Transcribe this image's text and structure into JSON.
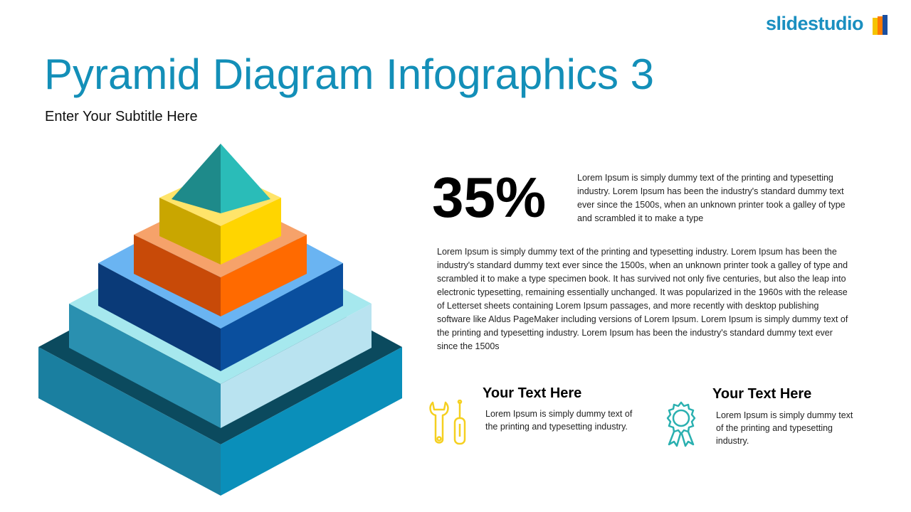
{
  "logo": {
    "text": "slidestudio",
    "colors": [
      "#f5c400",
      "#ff7a00",
      "#1a4fa0"
    ]
  },
  "title": "Pyramid Diagram Infographics 3",
  "subtitle": "Enter Your Subtitle Here",
  "stat": {
    "value": "35%",
    "text": "Lorem Ipsum is simply dummy text of the printing and typesetting industry. Lorem Ipsum has been the industry's standard dummy text ever since the 1500s, when an unknown printer took a galley of type and scrambled it to make a type"
  },
  "body": "Lorem Ipsum is simply dummy text of the printing and typesetting industry. Lorem Ipsum has been the industry's standard dummy text ever since the 1500s, when an unknown printer took a galley of type and scrambled it to make a type specimen book. It has survived not only five centuries, but also the leap into electronic typesetting, remaining essentially unchanged. It was popularized in the 1960s with the release of Letterset sheets containing Lorem Ipsum passages, and more recently with desktop publishing software like Aldus PageMaker including versions of Lorem Ipsum. Lorem Ipsum is simply dummy text of the printing and typesetting industry. Lorem Ipsum has been the industry's standard dummy text ever since the 1500s",
  "features": [
    {
      "icon": "wrench-screwdriver-icon",
      "color": "#f5d020",
      "heading": "Your Text Here",
      "text": "Lorem Ipsum is simply dummy text of the printing and typesetting industry."
    },
    {
      "icon": "award-ribbon-icon",
      "color": "#2ab0b0",
      "heading": "Your Text Here",
      "text": "Lorem Ipsum is simply dummy text of the printing and typesetting industry."
    }
  ],
  "pyramid_colors": {
    "level1": {
      "top": "#0b4a5e",
      "left": "#1a7fa0",
      "right": "#0a8fba"
    },
    "level2": {
      "top": "#a6e8ee",
      "left": "#2a90b0",
      "right": "#b9e3f0"
    },
    "level3": {
      "top": "#6ab4f2",
      "left": "#0a3a78",
      "right": "#0a4f9e"
    },
    "level4": {
      "top": "#f6a26a",
      "left": "#c84a08",
      "right": "#ff6a00"
    },
    "level5": {
      "top": "#ffe46a",
      "left": "#c9a600",
      "right": "#ffd500"
    },
    "apex": {
      "left": "#1e8a8a",
      "right": "#2abcb8"
    }
  }
}
